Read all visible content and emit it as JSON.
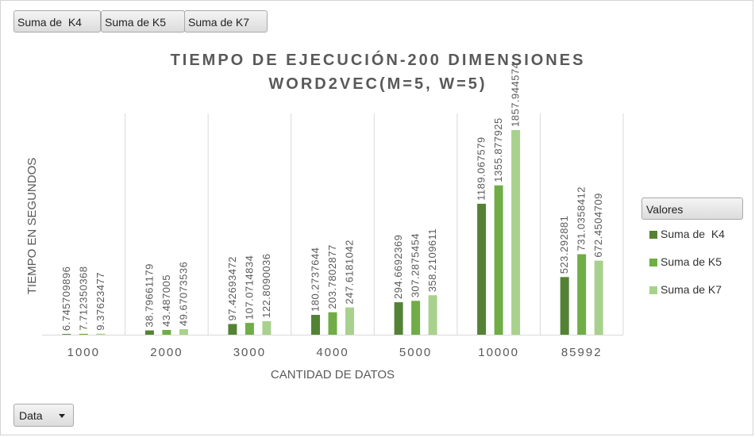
{
  "field_buttons": {
    "k4": "Suma de  K4",
    "k5": "Suma de K5",
    "k7": "Suma de K7"
  },
  "legend": {
    "header": "Valores"
  },
  "filter": {
    "label": "Data"
  },
  "colors": {
    "k4": "#548235",
    "k5": "#70ad47",
    "k7": "#a9d18e",
    "grid": "#d9d9d9",
    "text": "#595959"
  },
  "chart_data": {
    "type": "bar",
    "title_lines": [
      "TIEMPO DE EJECUCIÓN-200 DIMENSIONES",
      "WORD2VEC(M=5, W=5)"
    ],
    "xlabel": "CANTIDAD DE DATOS",
    "ylabel": "TIEMPO EN SEGUNDOS",
    "categories": [
      "1000",
      "2000",
      "3000",
      "4000",
      "5000",
      "10000",
      "85992"
    ],
    "series": [
      {
        "name": "Suma de  K4",
        "values": [
          6.745709896,
          38.79661179,
          97.42693472,
          180.2737644,
          294.6692369,
          1189.067579,
          523.292881
        ]
      },
      {
        "name": "Suma de K5",
        "values": [
          7.712350368,
          43.487005,
          107.0714834,
          203.7802877,
          307.2875454,
          1355.877925,
          731.0358412
        ]
      },
      {
        "name": "Suma de K7",
        "values": [
          9.37623477,
          49.67073536,
          122.8090036,
          247.6181042,
          358.2109611,
          1857.944574,
          672.4504709
        ]
      }
    ],
    "data_labels": [
      [
        "6.745709896",
        "38.79661179",
        "97.42693472",
        "180.2737644",
        "294.6692369",
        "1189.067579",
        "523.292881"
      ],
      [
        "7.712350368",
        "43.487005",
        "107.0714834",
        "203.7802877",
        "307.2875454",
        "1355.877925",
        "731.0358412"
      ],
      [
        "9.37623477",
        "49.67073536",
        "122.8090036",
        "247.6181042",
        "358.2109611",
        "1857.944574",
        "672.4504709"
      ]
    ],
    "ylim": [
      0,
      2000
    ],
    "legend_position": "right",
    "grid": "vertical"
  }
}
